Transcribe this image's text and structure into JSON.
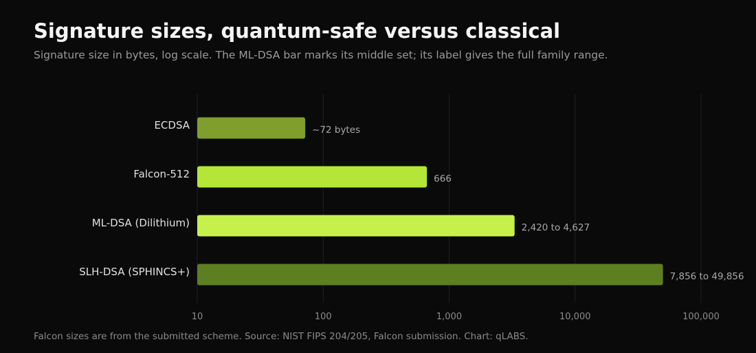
{
  "header": {
    "title": "Signature sizes, quantum-safe versus classical",
    "subtitle": "Signature size in bytes, log scale. The ML-DSA bar marks its middle set; its label gives the full family range."
  },
  "footer": {
    "note": "Falcon sizes are from the submitted scheme. Source: NIST FIPS 204/205, Falcon submission. Chart: qLABS."
  },
  "chart_data": {
    "type": "bar",
    "orientation": "horizontal",
    "scale": "log",
    "xlim": [
      10,
      100000
    ],
    "grid": true,
    "legend": "none",
    "categories": [
      "ECDSA",
      "Falcon-512",
      "ML-DSA (Dilithium)",
      "SLH-DSA (SPHINCS+)"
    ],
    "values": [
      72,
      666,
      3309,
      49856
    ],
    "data_labels": [
      "~72 bytes",
      "666",
      "2,420 to 4,627",
      "7,856 to 49,856"
    ],
    "colors": [
      "#7f9e2c",
      "#b3e637",
      "#c5f14a",
      "#5e7e22"
    ],
    "ticks": [
      10,
      100,
      1000,
      10000,
      100000
    ],
    "tick_labels": [
      "10",
      "100",
      "1,000",
      "10,000",
      "100,000"
    ]
  },
  "theme": {
    "background": "#0a0a0a",
    "grid_color": "#1f1f1f",
    "category_label_color": "#e0e0e0",
    "value_label_color": "#a8a8a8",
    "tick_label_color": "#8c8c8c"
  }
}
